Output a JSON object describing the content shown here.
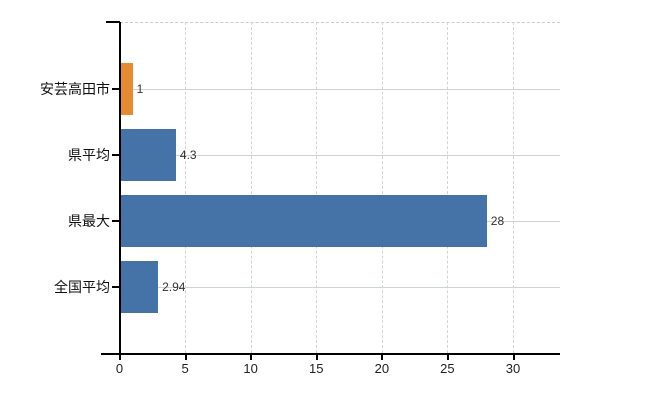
{
  "page": {
    "background": "#ffffff"
  },
  "chart_data": {
    "type": "bar",
    "orientation": "horizontal",
    "title": "",
    "xlabel": "",
    "ylabel": "",
    "categories": [
      "安芸高田市",
      "県平均",
      "県最大",
      "全国平均"
    ],
    "series": [
      {
        "name": "",
        "values": [
          1,
          4.3,
          28,
          2.94
        ]
      }
    ],
    "value_labels": [
      "1",
      "4.3",
      "28",
      "2.94"
    ],
    "bar_colors": [
      "#e78b33",
      "#4572a7",
      "#4572a7",
      "#4572a7"
    ],
    "x_ticks": [
      "0",
      "5",
      "10",
      "15",
      "20",
      "25",
      "30"
    ],
    "x_tick_values": [
      0,
      5,
      10,
      15,
      20,
      25,
      30
    ],
    "xlim": [
      0,
      33.6
    ],
    "grid": true,
    "legend": false,
    "colors": {
      "highlight_bar": "#e78b33",
      "default_bar": "#4572a7",
      "axis": "#000000",
      "vertical_grid": "#d8d2d8",
      "horizontal_grid": "#ccd5cb",
      "top_border": "#cfc9cf",
      "category_label": "#111111",
      "value_label": "#333333",
      "tick_label": "#222222"
    }
  }
}
